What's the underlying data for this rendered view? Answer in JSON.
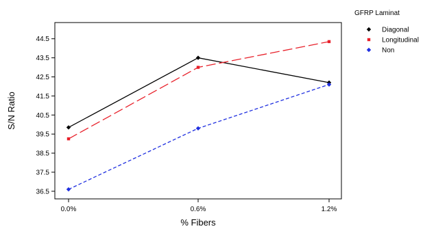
{
  "chart_data": {
    "type": "line",
    "title": "",
    "xlabel": "% Fibers",
    "ylabel": "S/N Ratio",
    "categories": [
      "0.0%",
      "0.6%",
      "1.2%"
    ],
    "yticks": [
      "36.5",
      "37.5",
      "38.5",
      "39.5",
      "40.5",
      "41.5",
      "42.5",
      "43.5",
      "44.5"
    ],
    "ylim": [
      36.1,
      45.35
    ],
    "grid": false,
    "legend": {
      "title": "GFRP Laminat",
      "placement": "top-right"
    },
    "series": [
      {
        "name": "Diagonal",
        "values": [
          39.85,
          43.5,
          42.2
        ],
        "color": "#000000",
        "dash": "solid",
        "marker": "diamond"
      },
      {
        "name": "Longitudinal",
        "values": [
          39.25,
          43.0,
          44.35
        ],
        "color": "#e8202a",
        "dash": "long",
        "marker": "square"
      },
      {
        "name": "Non",
        "values": [
          36.6,
          39.8,
          42.1
        ],
        "color": "#1f2fe0",
        "dash": "short",
        "marker": "diamond"
      }
    ]
  }
}
